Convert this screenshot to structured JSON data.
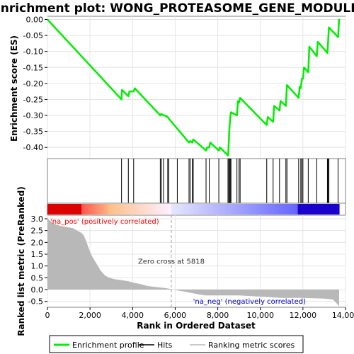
{
  "chart_data": {
    "type": "line",
    "title": "Enrichment plot: WONG_PROTEASOME_GENE_MODULE",
    "xlabel": "Rank in Ordered Dataset",
    "top_panel": {
      "ylabel": "Enrichment score (ES)",
      "ylim": [
        -0.435,
        0.01
      ],
      "yticks": [
        "0.00",
        "-0.05",
        "-0.10",
        "-0.15",
        "-0.20",
        "-0.25",
        "-0.30",
        "-0.35",
        "-0.40"
      ],
      "ytick_values": [
        0,
        -0.05,
        -0.1,
        -0.15,
        -0.2,
        -0.25,
        -0.3,
        -0.35,
        -0.4
      ],
      "series": [
        {
          "name": "Enrichment profile",
          "color": "#00ee00",
          "x": [
            0,
            3480,
            3500,
            3800,
            3850,
            4050,
            4100,
            5300,
            5350,
            5450,
            5500,
            5650,
            5700,
            6650,
            6700,
            6800,
            6850,
            7450,
            7500,
            7600,
            7650,
            8050,
            8100,
            8480,
            8500,
            8520,
            8540,
            8560,
            8600,
            8620,
            8900,
            8950,
            9000,
            9050,
            10300,
            10350,
            10600,
            10650,
            10900,
            10950,
            11200,
            11250,
            11800,
            11850,
            11900,
            11950,
            12000,
            12050,
            12250,
            12300,
            12650,
            12700,
            13150,
            13180,
            13220,
            13650,
            13700
          ],
          "y": [
            0,
            -0.25,
            -0.22,
            -0.24,
            -0.225,
            -0.225,
            -0.215,
            -0.3,
            -0.295,
            -0.3,
            -0.3,
            -0.305,
            -0.31,
            -0.385,
            -0.38,
            -0.385,
            -0.375,
            -0.41,
            -0.4,
            -0.4,
            -0.385,
            -0.41,
            -0.4,
            -0.425,
            -0.41,
            -0.38,
            -0.35,
            -0.33,
            -0.3,
            -0.29,
            -0.3,
            -0.255,
            -0.26,
            -0.245,
            -0.33,
            -0.305,
            -0.32,
            -0.27,
            -0.285,
            -0.255,
            -0.27,
            -0.205,
            -0.245,
            -0.21,
            -0.215,
            -0.185,
            -0.185,
            -0.15,
            -0.165,
            -0.085,
            -0.115,
            -0.07,
            -0.105,
            -0.075,
            -0.025,
            -0.055,
            0.002
          ]
        }
      ]
    },
    "hits": {
      "name": "Hits",
      "x": [
        3480,
        3800,
        4050,
        5300,
        5350,
        5450,
        5650,
        5700,
        6100,
        6650,
        6700,
        6800,
        6850,
        7450,
        7600,
        8050,
        8480,
        8520,
        8560,
        8600,
        8620,
        8900,
        9000,
        9050,
        10300,
        10600,
        10900,
        11200,
        11250,
        11800,
        11900,
        11950,
        12000,
        12250,
        12650,
        13150,
        13180,
        13220,
        13650
      ]
    },
    "bottom_panel": {
      "ylabel": "Ranked list metric (PreRanked)",
      "ylim": [
        -0.75,
        3.15
      ],
      "yticks": [
        "3.0",
        "2.5",
        "2.0",
        "1.5",
        "1.0",
        "0.5",
        "0.0",
        "-0.5"
      ],
      "ytick_values": [
        3.0,
        2.5,
        2.0,
        1.5,
        1.0,
        0.5,
        0.0,
        -0.5
      ],
      "series": [
        {
          "name": "Ranking metric scores",
          "color": "#b8b8b8",
          "x": [
            0,
            300,
            600,
            900,
            1200,
            1400,
            1600,
            1700,
            1800,
            1900,
            2000,
            2100,
            2200,
            2300,
            2500,
            2700,
            2900,
            3100,
            3300,
            3500,
            3800,
            4000,
            4300,
            4500,
            4700,
            5000,
            5200,
            5500,
            5818,
            6200,
            6500,
            6800,
            7100,
            7400,
            7800,
            8500,
            9000,
            10000,
            11000,
            12000,
            13000,
            13400,
            13550,
            13650,
            13700
          ],
          "y": [
            3.0,
            2.8,
            2.7,
            2.65,
            2.6,
            2.5,
            2.4,
            2.3,
            2.1,
            1.85,
            1.6,
            1.4,
            1.25,
            1.1,
            0.8,
            0.6,
            0.5,
            0.45,
            0.42,
            0.4,
            0.35,
            0.3,
            0.25,
            0.2,
            0.15,
            0.12,
            0.1,
            0.07,
            0.02,
            -0.05,
            -0.1,
            -0.15,
            -0.2,
            -0.25,
            -0.25,
            -0.25,
            -0.25,
            -0.3,
            -0.35,
            -0.35,
            -0.38,
            -0.42,
            -0.55,
            -0.65,
            -0.7
          ]
        }
      ],
      "zero_cross": 5818,
      "zero_cross_label": "Zero cross at 5818",
      "pos_label": "'na_pos' (positively correlated)",
      "neg_label": "'na_neg' (negatively correlated)",
      "pos_color": "#ff0000",
      "neg_color": "#0000cc"
    },
    "xlim": [
      0,
      14000
    ],
    "xticks": [
      "0",
      "2,000",
      "4,000",
      "6,000",
      "8,000",
      "10,000",
      "12,000",
      "14,000"
    ],
    "xtick_values": [
      0,
      2000,
      4000,
      6000,
      8000,
      10000,
      12000,
      14000
    ],
    "n_ranked": 13700,
    "legend_position": "bottom",
    "legend": [
      {
        "label": "Enrichment profile",
        "color": "#00ee00",
        "kind": "line"
      },
      {
        "label": "Hits",
        "color": "#000000",
        "kind": "line"
      },
      {
        "label": "Ranking metric scores",
        "color": "#b8b8b8",
        "kind": "line"
      }
    ]
  }
}
